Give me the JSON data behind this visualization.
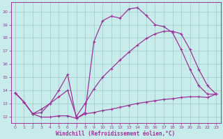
{
  "xlabel": "Windchill (Refroidissement éolien,°C)",
  "background_color": "#c8ecec",
  "grid_color": "#a0c8c8",
  "line_color": "#993399",
  "xlim": [
    -0.5,
    23.5
  ],
  "ylim": [
    11.5,
    20.7
  ],
  "xticks": [
    0,
    1,
    2,
    3,
    4,
    5,
    6,
    7,
    8,
    9,
    10,
    11,
    12,
    13,
    14,
    15,
    16,
    17,
    18,
    19,
    20,
    21,
    22,
    23
  ],
  "yticks": [
    12,
    13,
    14,
    15,
    16,
    17,
    18,
    19,
    20
  ],
  "line1_x": [
    0,
    1,
    2,
    3,
    4,
    5,
    6,
    7,
    8,
    9,
    10,
    11,
    12,
    13,
    14,
    15,
    16,
    17,
    18,
    19,
    20,
    21,
    22,
    23
  ],
  "line1_y": [
    13.8,
    13.1,
    12.2,
    11.95,
    11.95,
    12.05,
    12.05,
    11.85,
    12.2,
    12.3,
    12.45,
    12.55,
    12.7,
    12.85,
    13.0,
    13.1,
    13.2,
    13.3,
    13.35,
    13.45,
    13.5,
    13.5,
    13.45,
    13.7
  ],
  "line2_x": [
    0,
    1,
    2,
    3,
    4,
    5,
    6,
    7,
    8,
    9,
    10,
    11,
    12,
    13,
    14,
    15,
    16,
    17,
    18,
    19,
    20,
    21,
    22,
    23
  ],
  "line2_y": [
    13.8,
    13.1,
    12.2,
    12.3,
    13.0,
    14.0,
    15.2,
    11.85,
    12.3,
    17.7,
    19.3,
    19.65,
    19.5,
    20.2,
    20.3,
    19.7,
    19.0,
    18.85,
    18.4,
    17.1,
    15.6,
    14.35,
    13.7,
    13.7
  ],
  "line3_x": [
    0,
    1,
    2,
    3,
    4,
    5,
    6,
    7,
    8,
    9,
    10,
    11,
    12,
    13,
    14,
    15,
    16,
    17,
    18,
    19,
    20,
    21,
    22,
    23
  ],
  "line3_y": [
    13.8,
    13.1,
    12.2,
    12.55,
    13.0,
    13.5,
    14.0,
    12.0,
    13.0,
    14.1,
    15.0,
    15.65,
    16.3,
    16.9,
    17.45,
    17.95,
    18.3,
    18.5,
    18.5,
    18.3,
    17.1,
    15.6,
    14.35,
    13.7
  ]
}
